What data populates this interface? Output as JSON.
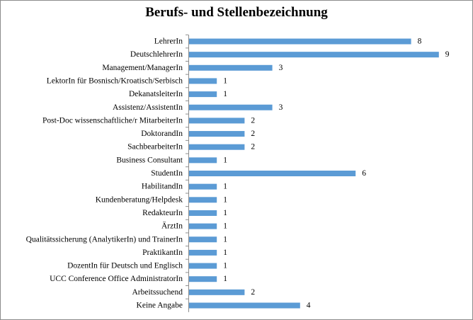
{
  "chart_data": {
    "type": "bar",
    "orientation": "horizontal",
    "title": "Berufs- und Stellenbezeichnung",
    "xlabel": "",
    "ylabel": "",
    "xlim": [
      0,
      9
    ],
    "grid": false,
    "legend": "none",
    "bar_color": "#5b9bd5",
    "categories": [
      "LehrerIn",
      "DeutschlehrerIn",
      "Management/ManagerIn",
      "LektorIn für Bosnisch/Kroatisch/Serbisch",
      "DekanatsleiterIn",
      "Assistenz/AssistentIn",
      "Post-Doc wissenschaftliche/r MitarbeiterIn",
      "DoktorandIn",
      "SachbearbeiterIn",
      "Business Consultant",
      "StudentIn",
      "HabilitandIn",
      "Kundenberatung/Helpdesk",
      "RedakteurIn",
      "ÄrztIn",
      "Qualitätssicherung (AnalytikerIn) und TrainerIn",
      "PraktikantIn",
      "DozentIn für Deutsch und Englisch",
      "UCC Conference Office AdministratorIn",
      "Arbeitssuchend",
      "Keine Angabe"
    ],
    "values": [
      8,
      9,
      3,
      1,
      1,
      3,
      2,
      2,
      2,
      1,
      6,
      1,
      1,
      1,
      1,
      1,
      1,
      1,
      1,
      2,
      4
    ]
  }
}
